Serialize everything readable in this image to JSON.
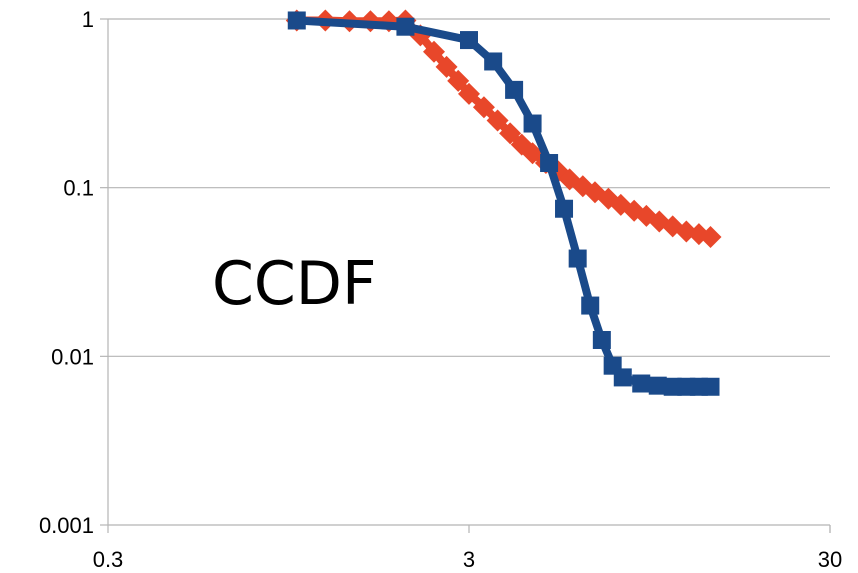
{
  "chart_data": {
    "type": "line",
    "title": "",
    "xlabel": "",
    "ylabel": "",
    "overlay_text": "CCDF",
    "x_scale": "log",
    "y_scale": "log",
    "xlim": [
      0.3,
      30
    ],
    "ylim": [
      0.001,
      1
    ],
    "x_ticks": [
      0.3,
      3,
      30
    ],
    "x_tick_labels": [
      "0.3",
      "3",
      "30"
    ],
    "y_ticks": [
      1,
      0.1,
      0.01,
      0.001
    ],
    "y_tick_labels": [
      "1",
      "0.1",
      "0.01",
      "0.001"
    ],
    "grid": "horizontal",
    "legend": "none",
    "series": [
      {
        "color": "#e8472a",
        "marker": "diamond",
        "points": [
          [
            1.0,
            0.98
          ],
          [
            1.2,
            0.98
          ],
          [
            1.4,
            0.97
          ],
          [
            1.6,
            0.97
          ],
          [
            1.8,
            0.97
          ],
          [
            2.0,
            0.98
          ],
          [
            2.2,
            0.8
          ],
          [
            2.4,
            0.64
          ],
          [
            2.6,
            0.52
          ],
          [
            2.8,
            0.43
          ],
          [
            3.0,
            0.36
          ],
          [
            3.3,
            0.3
          ],
          [
            3.6,
            0.25
          ],
          [
            3.9,
            0.21
          ],
          [
            4.2,
            0.18
          ],
          [
            4.5,
            0.16
          ],
          [
            4.9,
            0.14
          ],
          [
            5.3,
            0.125
          ],
          [
            5.7,
            0.112
          ],
          [
            6.2,
            0.102
          ],
          [
            6.7,
            0.094
          ],
          [
            7.3,
            0.086
          ],
          [
            7.9,
            0.079
          ],
          [
            8.6,
            0.073
          ],
          [
            9.3,
            0.068
          ],
          [
            10.1,
            0.063
          ],
          [
            11.0,
            0.059
          ],
          [
            12.0,
            0.055
          ],
          [
            13.0,
            0.053
          ],
          [
            14.0,
            0.051
          ]
        ]
      },
      {
        "color": "#1a4a8a",
        "marker": "square",
        "points": [
          [
            1.0,
            0.98
          ],
          [
            2.0,
            0.9
          ],
          [
            3.0,
            0.75
          ],
          [
            3.5,
            0.56
          ],
          [
            4.0,
            0.38
          ],
          [
            4.5,
            0.24
          ],
          [
            5.0,
            0.14
          ],
          [
            5.5,
            0.075
          ],
          [
            6.0,
            0.038
          ],
          [
            6.5,
            0.02
          ],
          [
            7.0,
            0.0125
          ],
          [
            7.5,
            0.0088
          ],
          [
            8.0,
            0.0075
          ],
          [
            9.0,
            0.0069
          ],
          [
            10.0,
            0.0067
          ],
          [
            11.0,
            0.0066
          ],
          [
            12.0,
            0.0066
          ],
          [
            13.0,
            0.0066
          ],
          [
            14.0,
            0.0066
          ]
        ]
      }
    ]
  }
}
